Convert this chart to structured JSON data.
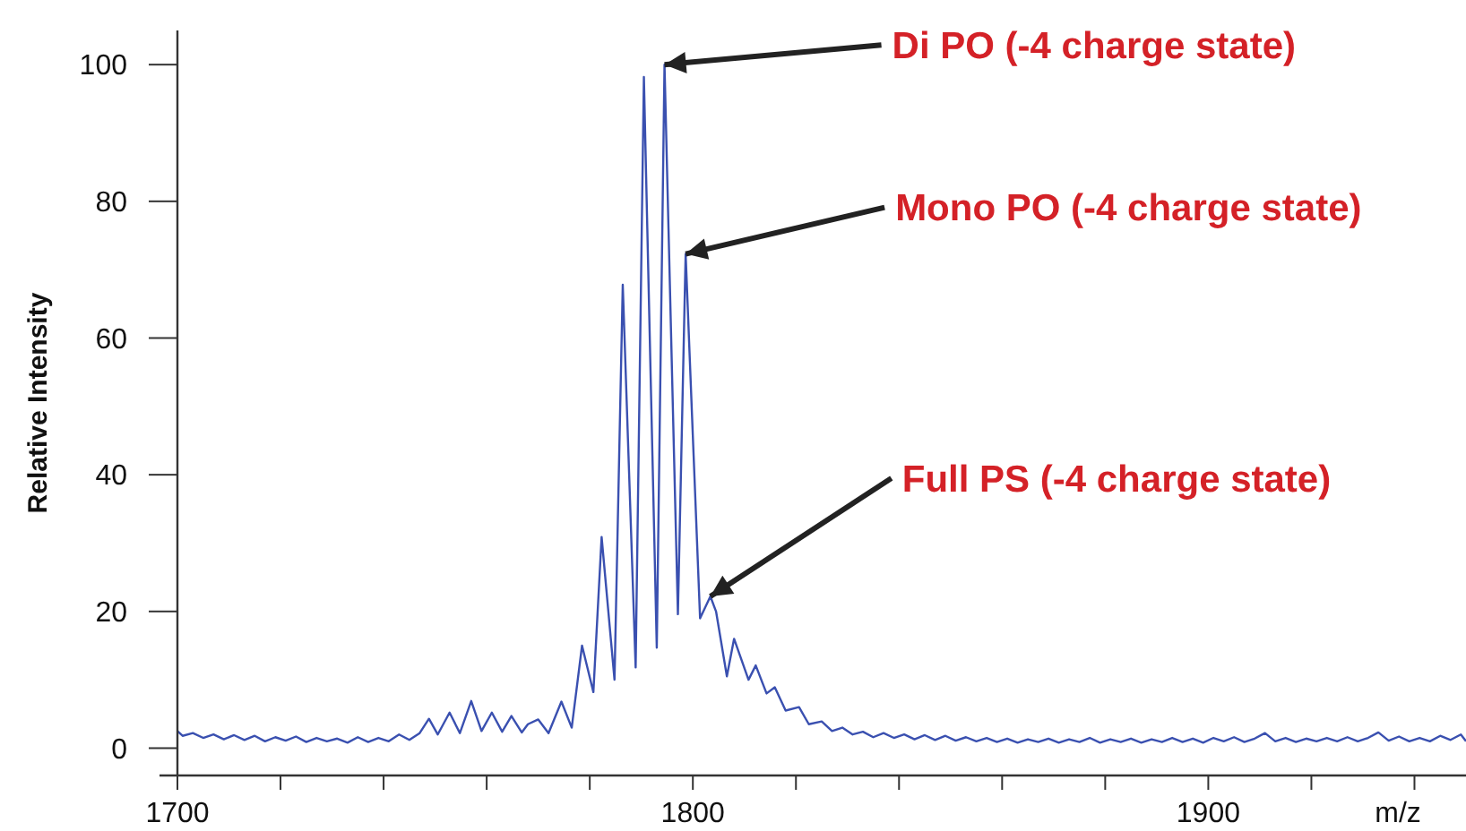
{
  "chart_data": {
    "type": "line",
    "xlabel": "m/z",
    "ylabel": "Relative Intensity",
    "xlim": [
      1700,
      1950
    ],
    "ylim": [
      -4,
      105
    ],
    "xticks": [
      1700,
      {
        "value": 1720,
        "label": null
      },
      {
        "value": 1740,
        "label": null
      },
      {
        "value": 1760,
        "label": null
      },
      {
        "value": 1780,
        "label": null
      },
      1800,
      {
        "value": 1820,
        "label": null
      },
      {
        "value": 1840,
        "label": null
      },
      {
        "value": 1860,
        "label": null
      },
      {
        "value": 1880,
        "label": null
      },
      1900,
      {
        "value": 1920,
        "label": null
      },
      {
        "value": 1940,
        "label": null
      }
    ],
    "yticks": [
      0,
      20,
      40,
      60,
      80,
      100
    ],
    "grid": false,
    "marker": "none",
    "line_style": "solid",
    "annotations": [
      {
        "text": "Di PO (-4 charge state)",
        "x": 1794.5,
        "y": 100
      },
      {
        "text": "Mono PO (-4 charge state)",
        "x": 1798.6,
        "y": 72.3
      },
      {
        "text": "Full PS (-4 charge state)",
        "x": 1803.4,
        "y": 22.2
      }
    ],
    "series": [
      {
        "color": "#3a50b0",
        "x": [
          1700,
          1701,
          1703,
          1705,
          1707,
          1709,
          1711,
          1713,
          1715,
          1717,
          1719,
          1721,
          1723,
          1725,
          1727,
          1729,
          1731,
          1733,
          1735,
          1737,
          1739,
          1741,
          1743,
          1745,
          1747,
          1748.8,
          1750.5,
          1752.8,
          1754.8,
          1757,
          1759,
          1761,
          1763,
          1764.8,
          1766.8,
          1768,
          1770,
          1772,
          1774.5,
          1776.5,
          1778.5,
          1780.7,
          1782.3,
          1784.8,
          1786.4,
          1788.9,
          1790.5,
          1793,
          1794.5,
          1797.1,
          1798.6,
          1801.4,
          1803.4,
          1804.5,
          1806.6,
          1808,
          1810.8,
          1812.2,
          1814.3,
          1815.9,
          1818,
          1820.6,
          1822.5,
          1825,
          1827,
          1829,
          1831,
          1833,
          1835,
          1837,
          1839,
          1841,
          1843,
          1845,
          1847,
          1849,
          1851,
          1853,
          1855,
          1857,
          1859,
          1861,
          1863,
          1865,
          1867,
          1869,
          1871,
          1873,
          1875,
          1877,
          1879,
          1881,
          1883,
          1885,
          1887,
          1889,
          1891,
          1893,
          1895,
          1897,
          1899,
          1901,
          1903,
          1905,
          1907,
          1909,
          1911,
          1913,
          1915,
          1917,
          1919,
          1921,
          1923,
          1925,
          1927,
          1929,
          1931,
          1933,
          1935,
          1937,
          1939,
          1941,
          1943,
          1945,
          1947,
          1949,
          1950
        ],
        "values": [
          2.5,
          1.8,
          2.2,
          1.5,
          2.0,
          1.3,
          1.9,
          1.2,
          1.8,
          1.0,
          1.6,
          1.1,
          1.7,
          0.9,
          1.5,
          1.0,
          1.4,
          0.8,
          1.6,
          0.9,
          1.5,
          1.0,
          2.0,
          1.2,
          2.2,
          4.3,
          2.0,
          5.2,
          2.2,
          6.9,
          2.5,
          5.2,
          2.4,
          4.7,
          2.3,
          3.5,
          4.2,
          2.2,
          6.8,
          3.0,
          15,
          8.2,
          30.9,
          10,
          67.8,
          11.8,
          98.2,
          14.7,
          100,
          19.6,
          72.3,
          19,
          22.2,
          20,
          10.5,
          16,
          10,
          12.1,
          8,
          8.9,
          5.5,
          6,
          3.5,
          3.9,
          2.5,
          3.0,
          2.0,
          2.4,
          1.6,
          2.2,
          1.5,
          2.0,
          1.3,
          1.9,
          1.2,
          1.8,
          1.1,
          1.6,
          1.0,
          1.5,
          0.9,
          1.4,
          0.8,
          1.3,
          0.9,
          1.4,
          0.8,
          1.3,
          0.9,
          1.5,
          0.8,
          1.3,
          0.9,
          1.4,
          0.8,
          1.3,
          0.9,
          1.5,
          0.9,
          1.4,
          0.8,
          1.5,
          1.0,
          1.6,
          0.9,
          1.4,
          2.2,
          1.0,
          1.5,
          0.9,
          1.4,
          1.0,
          1.5,
          1.0,
          1.6,
          1.0,
          1.5,
          2.3,
          1.1,
          1.7,
          1.0,
          1.5,
          1.0,
          1.8,
          1.2,
          2.0,
          1.0
        ]
      }
    ]
  }
}
